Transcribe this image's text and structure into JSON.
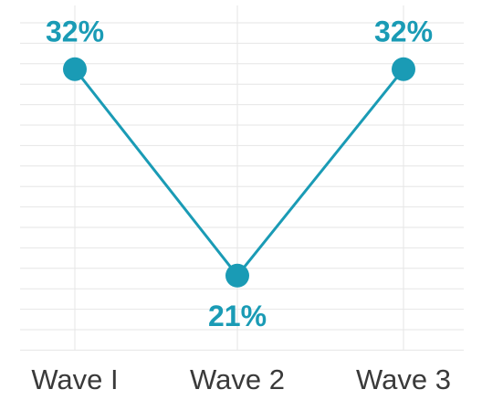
{
  "chart_data": {
    "type": "line",
    "categories": [
      "Wave I",
      "Wave 2",
      "Wave 3"
    ],
    "series": [
      {
        "values": [
          32,
          21,
          32
        ]
      }
    ],
    "data_labels": [
      "32%",
      "21%",
      "32%"
    ],
    "ylim": [
      17,
      35
    ],
    "grid": true,
    "legend": "none",
    "title": "",
    "xlabel": "",
    "ylabel": ""
  },
  "colors": {
    "series": "#1a9bb5",
    "label": "#1a9bb5",
    "tick": "#3a3a3a",
    "grid": "#e6e6e6"
  }
}
